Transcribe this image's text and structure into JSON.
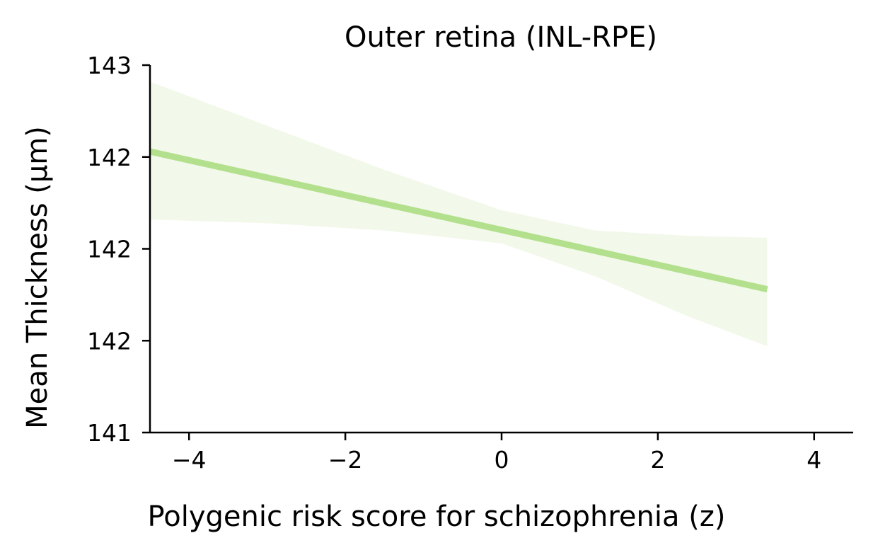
{
  "chart_data": {
    "type": "line",
    "title": "Outer retina (INL-RPE)",
    "xlabel": "Polygenic risk score for schizophrenia (z)",
    "ylabel": "Mean Thickness (µm)",
    "xlim": [
      -4.5,
      4.5
    ],
    "ylim": [
      141.0,
      143.0
    ],
    "x_ticks": [
      -4,
      -2,
      0,
      2,
      4
    ],
    "x_tick_labels": [
      "−4",
      "−2",
      "0",
      "2",
      "4"
    ],
    "y_ticks": [
      141.0,
      141.5,
      142.0,
      142.5,
      143.0
    ],
    "y_tick_labels": [
      "141",
      "142",
      "142",
      "142",
      "143"
    ],
    "grid": false,
    "series": [
      {
        "color": "#b3e08d",
        "ci_color": "#f2f8ea",
        "x": [
          -4.5,
          3.4
        ],
        "y": [
          142.53,
          141.78
        ],
        "ci_upper": {
          "x": [
            -4.5,
            -3.0,
            -1.5,
            0.0,
            1.2,
            2.4,
            3.4
          ],
          "y": [
            142.91,
            142.67,
            142.43,
            142.21,
            142.1,
            142.07,
            142.06
          ]
        },
        "ci_lower": {
          "x": [
            -4.5,
            -3.0,
            -1.5,
            0.0,
            1.2,
            2.4,
            3.4
          ],
          "y": [
            142.16,
            142.14,
            142.1,
            142.03,
            141.85,
            141.63,
            141.47
          ]
        }
      }
    ]
  }
}
